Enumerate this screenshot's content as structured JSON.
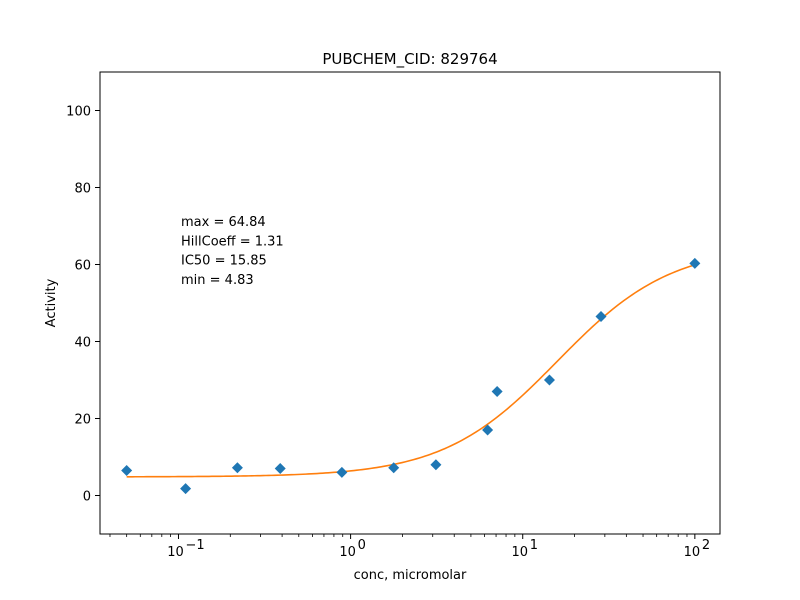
{
  "chart_data": {
    "type": "scatter",
    "title": "PUBCHEM_CID: 829764",
    "xlabel": "conc, micromolar",
    "ylabel": "Activity",
    "xscale": "log",
    "xlim": [
      0.035,
      140
    ],
    "ylim": [
      -10,
      110
    ],
    "x_ticks": [
      {
        "value": 0.1,
        "base": "10",
        "exp": "−1"
      },
      {
        "value": 1,
        "base": "10",
        "exp": "0"
      },
      {
        "value": 10,
        "base": "10",
        "exp": "1"
      },
      {
        "value": 100,
        "base": "10",
        "exp": "2"
      }
    ],
    "y_ticks": [
      0,
      20,
      40,
      60,
      80,
      100
    ],
    "grid": false,
    "points": {
      "x": [
        0.05,
        0.11,
        0.22,
        0.39,
        0.89,
        1.78,
        3.13,
        6.25,
        7.1,
        14.3,
        28.5,
        100
      ],
      "y": [
        6.5,
        1.8,
        7.2,
        7.0,
        6.0,
        7.2,
        8.0,
        17.0,
        27.0,
        30.0,
        46.5,
        60.3
      ],
      "color": "#1f77b4",
      "marker": "diamond"
    },
    "fit": {
      "color": "#ff7f0e",
      "max": 64.84,
      "min": 4.83,
      "ic50": 15.85,
      "hill": 1.31
    },
    "annotations": [
      "max = 64.84",
      "HillCoeff = 1.31",
      "IC50 = 15.85",
      "min = 4.83"
    ]
  }
}
